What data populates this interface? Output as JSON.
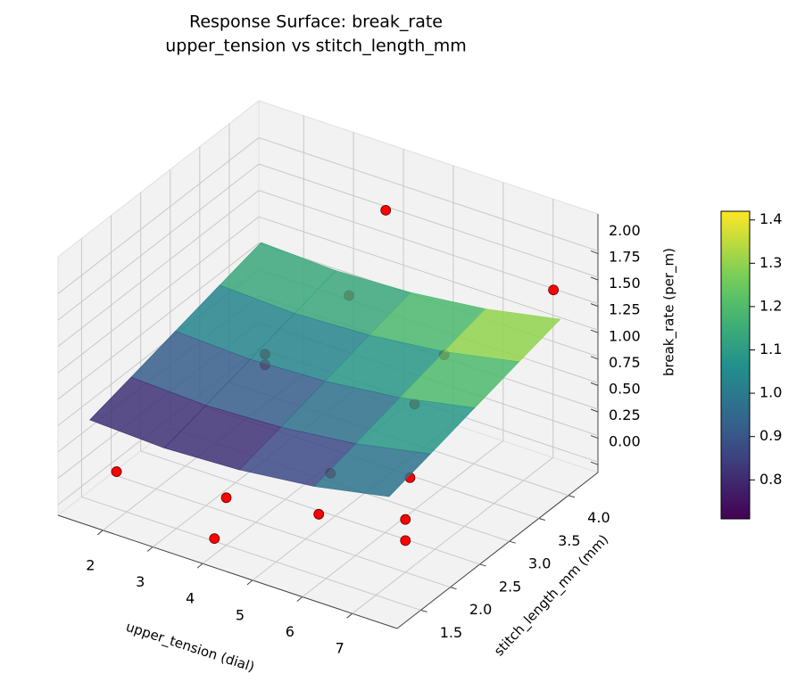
{
  "chart_data": {
    "type": "surface3d",
    "title": "Response Surface: break_rate",
    "subtitle": "upper_tension vs stitch_length_mm",
    "xlabel": "upper_tension (dial)",
    "ylabel": "stitch_length_mm (mm)",
    "zlabel": "break_rate (per_m)",
    "xlim": [
      1.1,
      7.9
    ],
    "ylim": [
      1.1,
      4.5
    ],
    "zlim": [
      -0.1,
      2.35
    ],
    "xticks": [
      2,
      3,
      4,
      5,
      6,
      7
    ],
    "yticks": [
      1.5,
      {
        "value": 2,
        "label": "2.0"
      },
      2.5,
      {
        "value": 3,
        "label": "3.0"
      },
      3.5,
      {
        "value": 4,
        "label": "4.0"
      }
    ],
    "zticks": [
      {
        "value": 0,
        "label": "0.00"
      },
      0.25,
      {
        "value": 0.5,
        "label": "0.50"
      },
      0.75,
      {
        "value": 1,
        "label": "1.00"
      },
      1.25,
      {
        "value": 1.5,
        "label": "1.50"
      },
      1.75,
      {
        "value": 2,
        "label": "2.00"
      }
    ],
    "grid": true,
    "colormap": "viridis",
    "clim": [
      0.71,
      1.42
    ],
    "cticks": [
      0.8,
      0.9,
      {
        "value": 1,
        "label": "1.0"
      },
      1.1,
      1.2,
      1.3,
      1.4
    ],
    "surface": {
      "x": [
        1.5,
        3,
        4.5,
        6,
        7.5
      ],
      "y": [
        1.3,
        2.0,
        2.75,
        3.5,
        4.2
      ],
      "z": [
        [
          0.78,
          0.75,
          0.78,
          0.86,
          1.0
        ],
        [
          0.88,
          0.85,
          0.88,
          0.96,
          1.1
        ],
        [
          0.99,
          0.96,
          0.99,
          1.07,
          1.21
        ],
        [
          1.1,
          1.07,
          1.1,
          1.18,
          1.32
        ],
        [
          1.2,
          1.17,
          1.2,
          1.28,
          1.42
        ]
      ]
    },
    "points": {
      "color": "#ff0000",
      "x": [
        1.8,
        4.0,
        4.0,
        7.0,
        7.0,
        3.0,
        3.0,
        5.5,
        5.5,
        6.5,
        3.5,
        6.0,
        6.0,
        4.0,
        7.6
      ],
      "y": [
        1.5,
        1.5,
        1.3,
        2.0,
        2.0,
        3.0,
        3.0,
        2.0,
        1.8,
        2.5,
        4.0,
        3.5,
        3.0,
        4.2,
        4.0
      ],
      "z": [
        0.25,
        0.35,
        0.05,
        0.4,
        0.2,
        0.9,
        0.8,
        0.6,
        0.3,
        0.5,
        1.1,
        1.15,
        0.9,
        1.9,
        1.8
      ]
    }
  }
}
